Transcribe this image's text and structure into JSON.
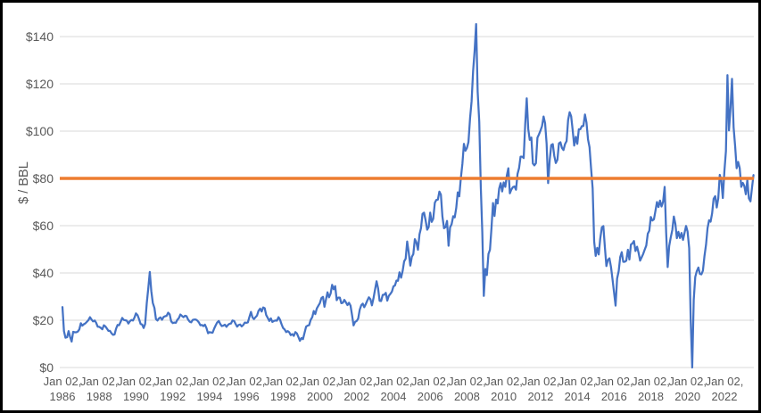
{
  "colors": {
    "price_line": "#4472C4",
    "reference_line": "#ED7D31",
    "gridline": "#D9D9D9",
    "axis_text": "#595959",
    "background": "#FFFFFF",
    "border": "#000000"
  },
  "chart_data": {
    "type": "line",
    "title": "",
    "xlabel": "",
    "ylabel": "$ / BBL",
    "grid": "horizontal-only",
    "legend": "none",
    "ylim": [
      0,
      150
    ],
    "y_axis": {
      "ticks": [
        {
          "label": "$0",
          "value": 0
        },
        {
          "label": "$20",
          "value": 20
        },
        {
          "label": "$40",
          "value": 40
        },
        {
          "label": "$60",
          "value": 60
        },
        {
          "label": "$80",
          "value": 80
        },
        {
          "label": "$100",
          "value": 100
        },
        {
          "label": "$120",
          "value": 120
        },
        {
          "label": "$140",
          "value": 140
        }
      ]
    },
    "x_axis": {
      "ticks": [
        {
          "top": "Jan 02,",
          "bottom": "1986"
        },
        {
          "top": "Jan 02,",
          "bottom": "1988"
        },
        {
          "top": "Jan 02,",
          "bottom": "1990"
        },
        {
          "top": "Jan 02,",
          "bottom": "1992"
        },
        {
          "top": "Jan 02,",
          "bottom": "1994"
        },
        {
          "top": "Jan 02,",
          "bottom": "1996"
        },
        {
          "top": "Jan 02,",
          "bottom": "1998"
        },
        {
          "top": "Jan 02,",
          "bottom": "2000"
        },
        {
          "top": "Jan 02,",
          "bottom": "2002"
        },
        {
          "top": "Jan 02,",
          "bottom": "2004"
        },
        {
          "top": "Jan 02,",
          "bottom": "2006"
        },
        {
          "top": "Jan 02,",
          "bottom": "2008"
        },
        {
          "top": "Jan 02,",
          "bottom": "2010"
        },
        {
          "top": "Jan 02,",
          "bottom": "2012"
        },
        {
          "top": "Jan 02,",
          "bottom": "2014"
        },
        {
          "top": "Jan 02,",
          "bottom": "2016"
        },
        {
          "top": "Jan 02,",
          "bottom": "2018"
        },
        {
          "top": "Jan 02,",
          "bottom": "2020"
        },
        {
          "top": "Jan 02,",
          "bottom": "2022"
        }
      ]
    },
    "series": [
      {
        "name": "oil-price-usd-per-bbl",
        "color": "#4472C4",
        "start": "Jan 1986",
        "frequency": "monthly",
        "values": [
          25.6,
          15.4,
          12.6,
          12.8,
          15.4,
          12.9,
          11.0,
          15.1,
          14.9,
          14.9,
          15.2,
          16.1,
          18.7,
          17.7,
          18.3,
          18.7,
          19.4,
          20.1,
          21.3,
          20.3,
          19.5,
          19.9,
          18.9,
          17.3,
          17.2,
          16.8,
          16.2,
          17.9,
          17.4,
          16.5,
          15.5,
          15.5,
          14.5,
          13.8,
          14.0,
          16.4,
          18.0,
          17.9,
          19.4,
          21.0,
          20.1,
          20.0,
          19.8,
          18.6,
          19.6,
          20.1,
          19.9,
          21.1,
          22.9,
          22.1,
          20.4,
          18.4,
          18.2,
          16.7,
          18.4,
          27.2,
          33.5,
          40.4,
          32.3,
          27.3,
          25.2,
          20.5,
          19.9,
          20.8,
          21.2,
          20.2,
          21.4,
          21.7,
          21.9,
          23.2,
          22.5,
          19.5,
          18.8,
          19.0,
          18.9,
          20.2,
          20.9,
          22.4,
          21.8,
          21.3,
          21.9,
          21.7,
          20.3,
          19.4,
          19.1,
          20.1,
          20.3,
          20.3,
          19.9,
          19.1,
          17.9,
          18.0,
          17.5,
          18.1,
          16.7,
          14.5,
          15.0,
          14.8,
          14.7,
          16.4,
          17.9,
          19.1,
          19.7,
          18.4,
          17.5,
          17.7,
          18.1,
          17.2,
          18.0,
          18.5,
          18.6,
          19.9,
          19.7,
          18.4,
          17.3,
          18.0,
          18.2,
          17.4,
          18.0,
          19.0,
          18.9,
          19.1,
          21.3,
          23.5,
          21.2,
          20.5,
          21.3,
          22.0,
          24.0,
          24.9,
          23.7,
          25.4,
          25.1,
          22.2,
          21.0,
          19.7,
          20.8,
          19.3,
          19.7,
          19.9,
          19.8,
          21.3,
          20.2,
          18.3,
          16.7,
          16.1,
          15.0,
          15.4,
          14.9,
          13.7,
          14.1,
          13.4,
          15.0,
          14.4,
          12.9,
          11.3,
          12.5,
          12.0,
          14.7,
          17.3,
          17.7,
          17.9,
          20.1,
          21.3,
          23.9,
          22.6,
          25.0,
          26.1,
          27.2,
          29.4,
          29.9,
          25.7,
          28.8,
          31.8,
          29.7,
          31.3,
          35.0,
          33.1,
          34.4,
          28.5,
          29.6,
          29.6,
          27.2,
          27.4,
          28.6,
          27.6,
          26.4,
          27.4,
          26.2,
          22.2,
          17.8,
          19.3,
          19.7,
          20.7,
          24.4,
          26.3,
          27.0,
          25.5,
          26.9,
          28.4,
          29.7,
          28.9,
          26.3,
          29.4,
          33.0,
          36.5,
          33.5,
          28.2,
          28.1,
          30.7,
          30.8,
          31.6,
          28.3,
          30.3,
          31.1,
          32.1,
          34.3,
          34.7,
          36.8,
          36.7,
          40.3,
          38.0,
          40.8,
          44.9,
          46.0,
          53.3,
          48.5,
          43.1,
          46.8,
          48.0,
          54.3,
          53.0,
          49.8,
          56.3,
          59.0,
          65.0,
          65.5,
          62.4,
          58.3,
          59.4,
          65.5,
          61.6,
          62.9,
          69.7,
          70.9,
          71.0,
          74.4,
          73.1,
          63.9,
          58.9,
          59.4,
          62.0,
          51.5,
          59.3,
          60.6,
          64.0,
          63.5,
          67.5,
          74.1,
          72.4,
          79.9,
          86.2,
          94.6,
          91.7,
          92.9,
          95.4,
          105.5,
          112.6,
          125.4,
          134.0,
          145.3,
          116.7,
          104.0,
          76.6,
          57.3,
          30.3,
          41.7,
          39.1,
          48.0,
          49.8,
          59.0,
          69.6,
          64.1,
          71.0,
          69.4,
          75.7,
          78.0,
          74.5,
          78.3,
          76.4,
          81.2,
          84.3,
          73.7,
          75.3,
          76.3,
          76.6,
          75.2,
          81.9,
          84.3,
          89.2,
          89.2,
          88.6,
          102.9,
          113.9,
          100.9,
          96.3,
          97.3,
          86.3,
          85.5,
          86.4,
          97.2,
          98.6,
          100.3,
          102.2,
          106.2,
          103.3,
          94.7,
          78.0,
          87.9,
          94.1,
          94.5,
          89.5,
          86.5,
          87.9,
          94.8,
          95.3,
          92.9,
          92.0,
          94.5,
          95.8,
          104.7,
          108.0,
          106.3,
          100.5,
          93.9,
          97.6,
          94.6,
          100.8,
          100.8,
          102.1,
          102.2,
          107.0,
          103.6,
          96.5,
          93.2,
          84.4,
          75.8,
          53.3,
          47.2,
          50.6,
          47.8,
          54.5,
          59.3,
          59.8,
          50.9,
          42.9,
          45.5,
          46.2,
          42.4,
          37.2,
          31.7,
          26.2,
          37.6,
          40.8,
          46.7,
          48.8,
          44.7,
          44.7,
          45.2,
          49.8,
          45.7,
          52.0,
          52.5,
          53.5,
          49.3,
          51.1,
          48.5,
          45.2,
          46.6,
          48.0,
          49.8,
          51.6,
          56.6,
          57.9,
          63.7,
          62.2,
          62.7,
          66.3,
          70.0,
          67.9,
          70.6,
          68.1,
          70.2,
          76.4,
          57.0,
          42.5,
          51.4,
          55.0,
          58.2,
          63.9,
          60.8,
          54.7,
          57.4,
          54.8,
          56.9,
          54.0,
          57.0,
          59.9,
          57.5,
          50.5,
          20.1,
          0.0,
          28.6,
          38.3,
          40.7,
          42.3,
          39.6,
          39.4,
          41.0,
          47.0,
          52.0,
          59.0,
          62.3,
          61.7,
          65.2,
          71.4,
          72.5,
          67.7,
          71.6,
          81.5,
          79.2,
          71.7,
          83.2,
          91.6,
          123.7,
          100.3,
          109.6,
          122.1,
          101.6,
          93.7,
          84.3,
          87.0,
          84.4,
          76.4,
          78.1,
          76.8,
          73.3,
          79.4,
          71.6,
          70.3,
          76.0,
          81.4
        ]
      },
      {
        "name": "reference-line-80",
        "color": "#ED7D31",
        "value": 80
      }
    ]
  }
}
